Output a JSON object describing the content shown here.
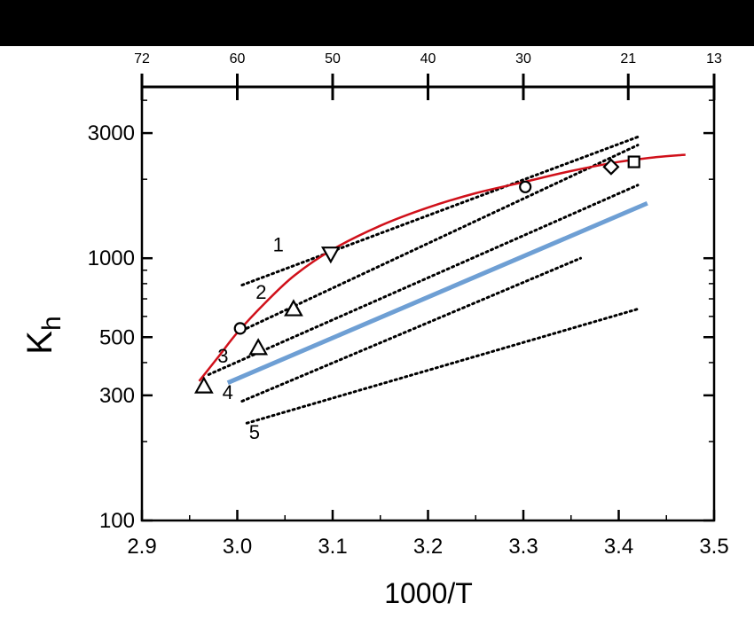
{
  "chart_data": {
    "type": "scatter",
    "title": "",
    "xlabel": "1000/T",
    "ylabel_main": "K",
    "ylabel_sub": "h",
    "xlim": [
      2.9,
      3.5
    ],
    "ylim": [
      100,
      4500
    ],
    "yscale": "log",
    "grid": false,
    "x_ticks": [
      2.9,
      3.0,
      3.1,
      3.2,
      3.3,
      3.4,
      3.5
    ],
    "x_tick_labels": [
      "2.9",
      "3.0",
      "3.1",
      "3.2",
      "3.3",
      "3.4",
      "3.5"
    ],
    "y_ticks": [
      100,
      300,
      500,
      1000,
      3000
    ],
    "y_tick_labels": [
      "100",
      "300",
      "500",
      "1000",
      "3000"
    ],
    "top_axis": {
      "tick_x": [
        2.9,
        3.0,
        3.1,
        3.2,
        3.3,
        3.41,
        3.5
      ],
      "labels": [
        "72",
        "60",
        "50",
        "40",
        "30",
        "21",
        "13"
      ]
    },
    "markers": [
      {
        "shape": "triangle-up",
        "x": 2.965,
        "y": 325
      },
      {
        "shape": "circle",
        "x": 3.003,
        "y": 540
      },
      {
        "shape": "triangle-up",
        "x": 3.022,
        "y": 455
      },
      {
        "shape": "triangle-up",
        "x": 3.059,
        "y": 640
      },
      {
        "shape": "triangle-down",
        "x": 3.098,
        "y": 1040
      },
      {
        "shape": "circle",
        "x": 3.302,
        "y": 1870
      },
      {
        "shape": "diamond",
        "x": 3.392,
        "y": 2230
      },
      {
        "shape": "square",
        "x": 3.416,
        "y": 2330
      }
    ],
    "red_curve": {
      "color": "#d0101a",
      "x": [
        2.96,
        2.98,
        3.0,
        3.03,
        3.06,
        3.1,
        3.15,
        3.2,
        3.25,
        3.3,
        3.35,
        3.4,
        3.44,
        3.47
      ],
      "y": [
        340,
        420,
        520,
        680,
        860,
        1080,
        1330,
        1560,
        1770,
        1950,
        2150,
        2330,
        2430,
        2480
      ]
    },
    "blue_line": {
      "color": "#6e9fd4",
      "x": [
        2.99,
        3.43
      ],
      "y": [
        335,
        1620
      ]
    },
    "dotted_lines": [
      {
        "label": "1",
        "label_at": [
          3.043,
          1060
        ],
        "x": [
          3.005,
          3.42
        ],
        "y": [
          790,
          2900
        ]
      },
      {
        "label": "2",
        "label_at": [
          3.025,
          700
        ],
        "x": [
          3.005,
          3.42
        ],
        "y": [
          530,
          2700
        ]
      },
      {
        "label": "3",
        "label_at": [
          2.985,
          400
        ],
        "x": [
          2.97,
          3.42
        ],
        "y": [
          360,
          1900
        ]
      },
      {
        "label": "4",
        "label_at": [
          2.99,
          290
        ],
        "x": [
          3.005,
          3.36
        ],
        "y": [
          285,
          1000
        ]
      },
      {
        "label": "5",
        "label_at": [
          3.018,
          205
        ],
        "x": [
          3.01,
          3.42
        ],
        "y": [
          235,
          640
        ]
      }
    ]
  }
}
